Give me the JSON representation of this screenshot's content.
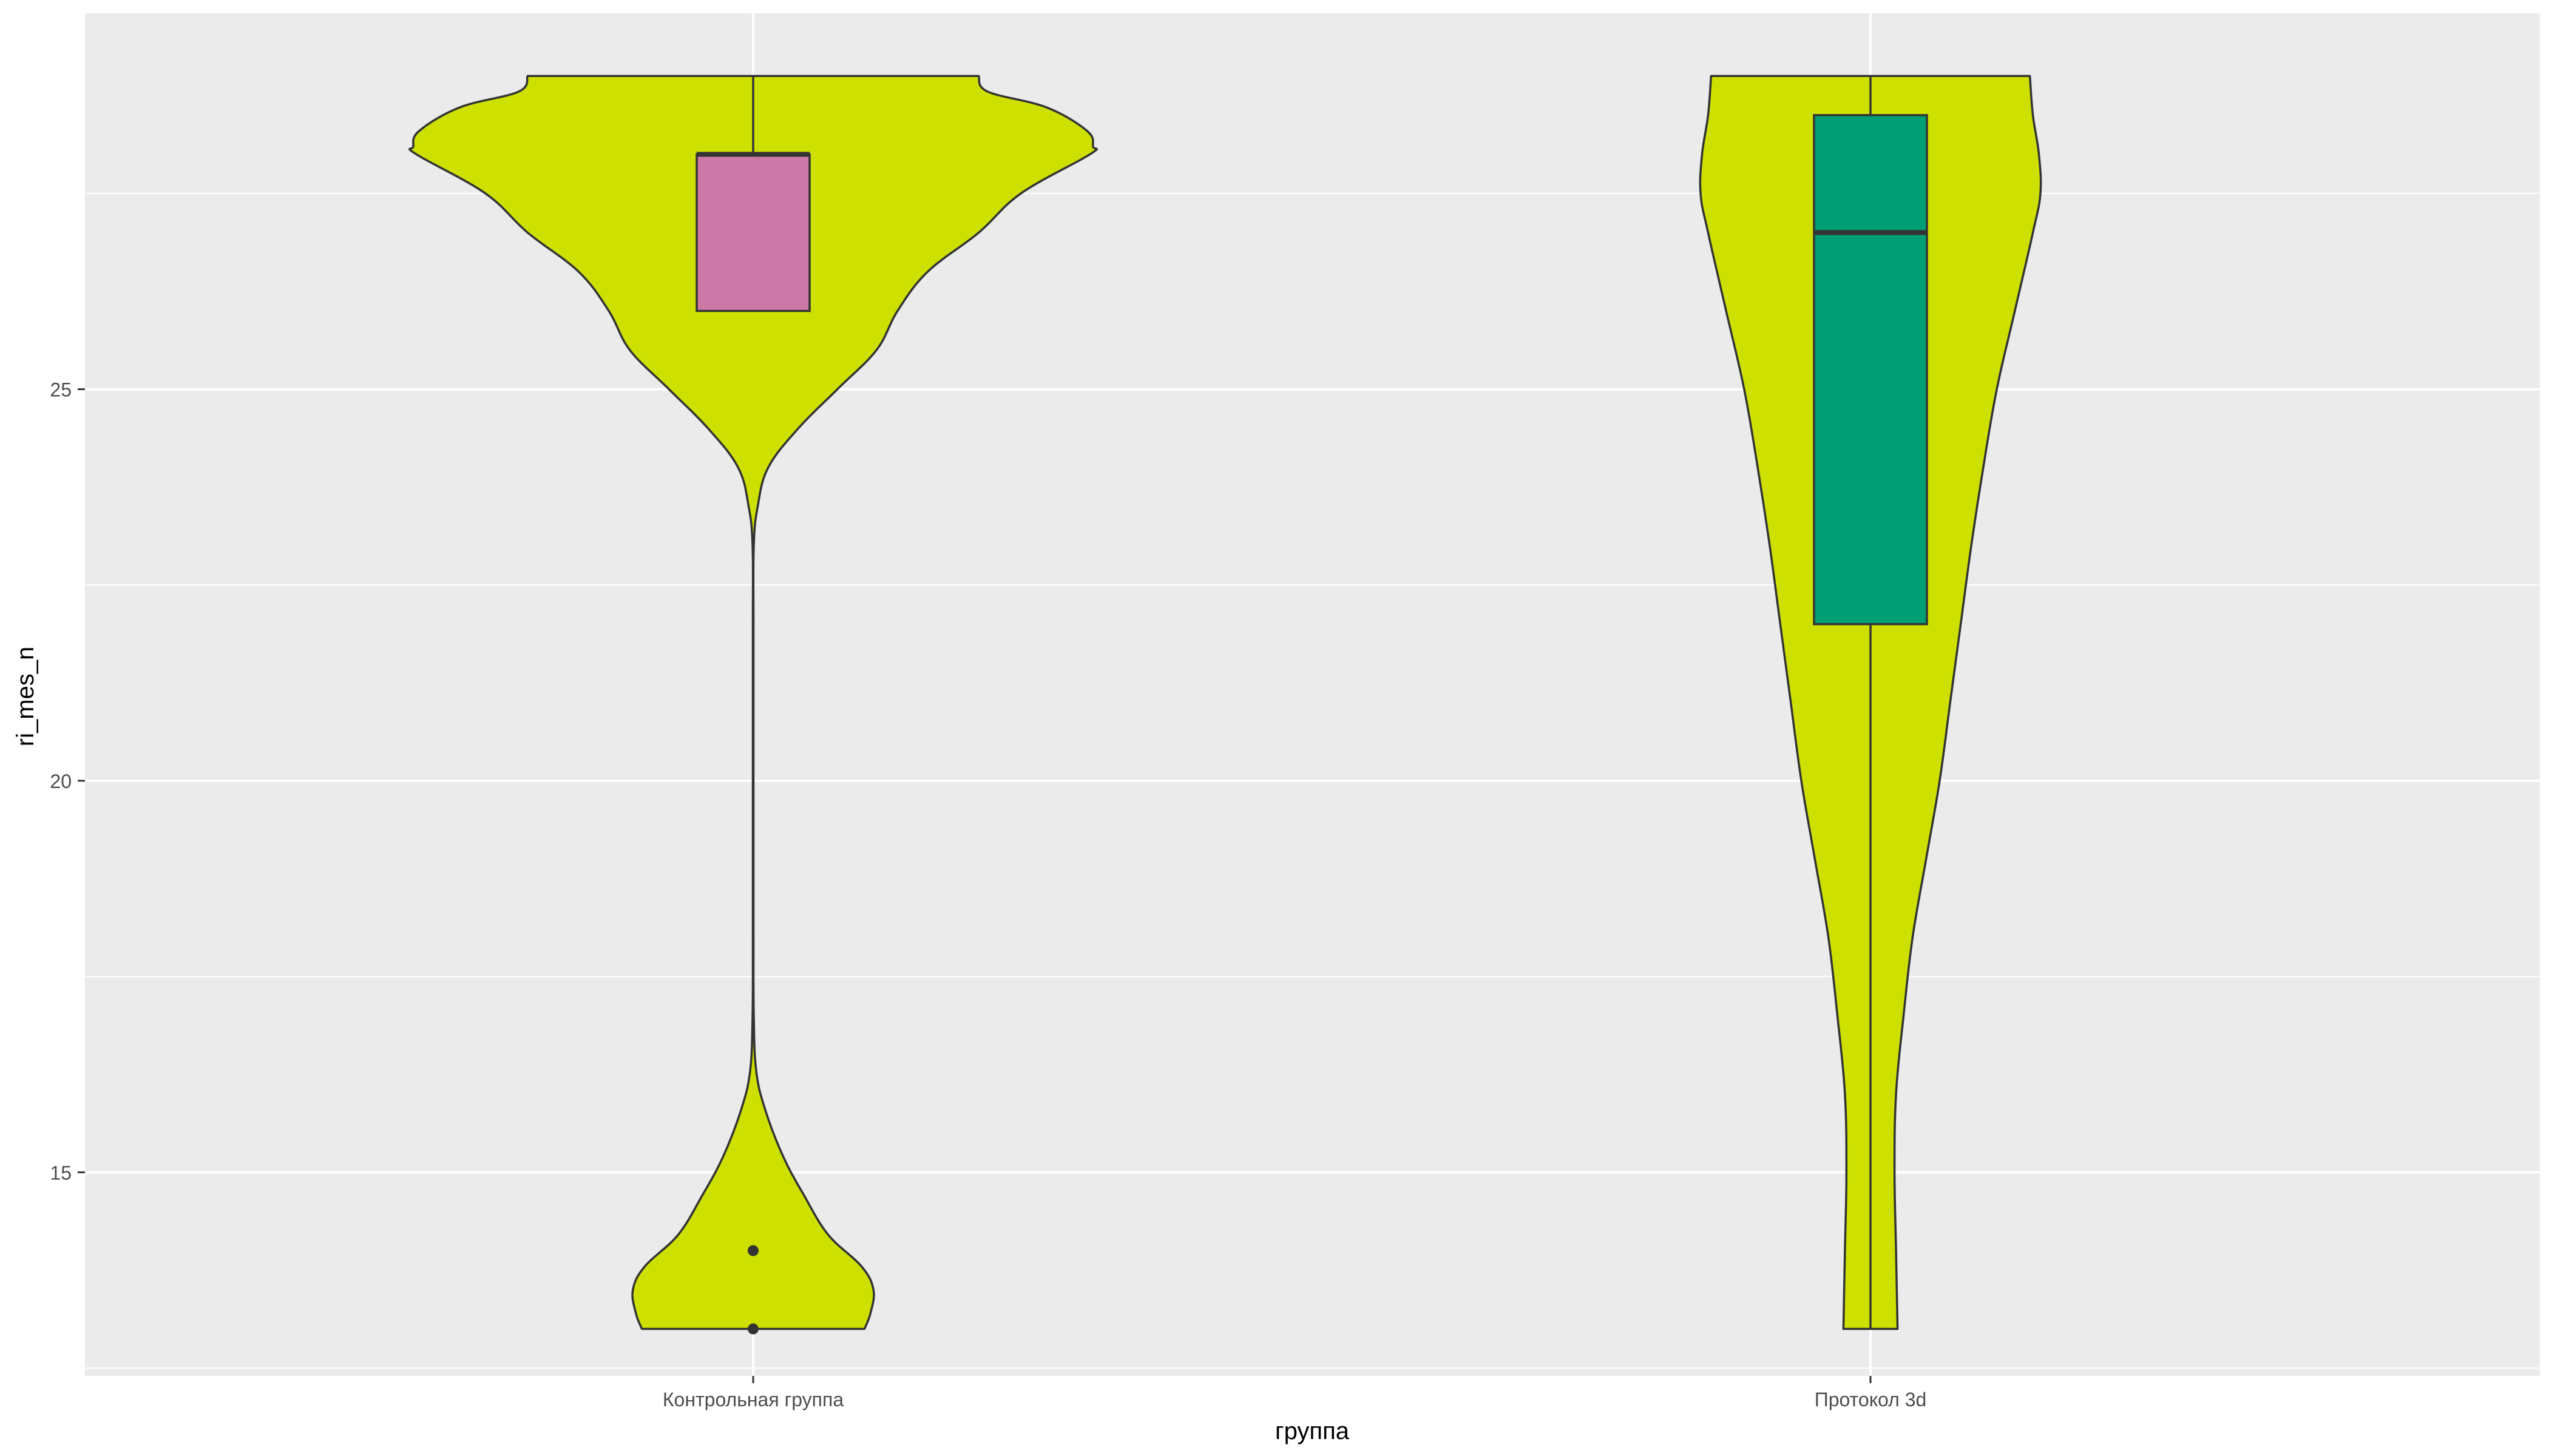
{
  "chart_data": {
    "type": "violin",
    "title": "",
    "xlabel": "группа",
    "ylabel": "ri_mes_n",
    "categories": [
      "Контрольная группа",
      "Протокол 3d"
    ],
    "ylim": [
      12.4,
      29.8
    ],
    "yticks": [
      15,
      20,
      25
    ],
    "ytick_labels": [
      "15",
      "20",
      "25"
    ],
    "grid": true,
    "legend": "none",
    "colors": {
      "panel_bg": "#EBEBEB",
      "grid": "#FFFFFF",
      "violin_fill": "#CDE000",
      "outline": "#333333",
      "tick_text": "#4D4D4D",
      "title_text": "#000000"
    },
    "groups": [
      {
        "name": "Контрольная группа",
        "violin": {
          "min": 13,
          "max": 29,
          "density": [
            [
              13,
              0.74
            ],
            [
              13.2,
              0.78
            ],
            [
              13.5,
              0.8
            ],
            [
              13.8,
              0.72
            ],
            [
              14.2,
              0.5
            ],
            [
              14.7,
              0.34
            ],
            [
              15.2,
              0.2
            ],
            [
              15.8,
              0.08
            ],
            [
              16.3,
              0.02
            ],
            [
              17,
              0.004
            ],
            [
              18,
              0.002
            ],
            [
              20,
              0.002
            ],
            [
              22,
              0.002
            ],
            [
              23,
              0.004
            ],
            [
              23.5,
              0.03
            ],
            [
              24,
              0.1
            ],
            [
              24.5,
              0.3
            ],
            [
              25,
              0.56
            ],
            [
              25.5,
              0.82
            ],
            [
              26,
              0.96
            ],
            [
              26.5,
              1.16
            ],
            [
              27,
              1.5
            ],
            [
              27.5,
              1.78
            ],
            [
              28,
              2.24
            ],
            [
              28.1,
              2.26
            ],
            [
              28.3,
              2.22
            ],
            [
              28.6,
              1.95
            ],
            [
              28.8,
              1.56
            ],
            [
              29,
              1.5
            ]
          ]
        },
        "box": {
          "q1": 26,
          "median": 28,
          "q3": 28,
          "whisker_low": 26,
          "whisker_high": 29,
          "fill": "#CC79A7"
        },
        "outliers": [
          14,
          13
        ]
      },
      {
        "name": "Протокол 3d",
        "violin": {
          "min": 13,
          "max": 29,
          "density": [
            [
              13,
              0.18
            ],
            [
              14,
              0.17
            ],
            [
              15,
              0.16
            ],
            [
              16,
              0.17
            ],
            [
              17,
              0.22
            ],
            [
              18,
              0.28
            ],
            [
              19,
              0.37
            ],
            [
              20,
              0.46
            ],
            [
              21,
              0.53
            ],
            [
              22,
              0.6
            ],
            [
              23,
              0.67
            ],
            [
              24,
              0.75
            ],
            [
              25,
              0.84
            ],
            [
              26,
              0.96
            ],
            [
              27,
              1.08
            ],
            [
              27.5,
              1.13
            ],
            [
              28,
              1.12
            ],
            [
              28.5,
              1.08
            ],
            [
              29,
              1.06
            ]
          ]
        },
        "box": {
          "q1": 22,
          "median": 27,
          "q3": 28.5,
          "whisker_low": 13,
          "whisker_high": 29,
          "fill": "#009E73"
        },
        "outliers": []
      }
    ]
  }
}
